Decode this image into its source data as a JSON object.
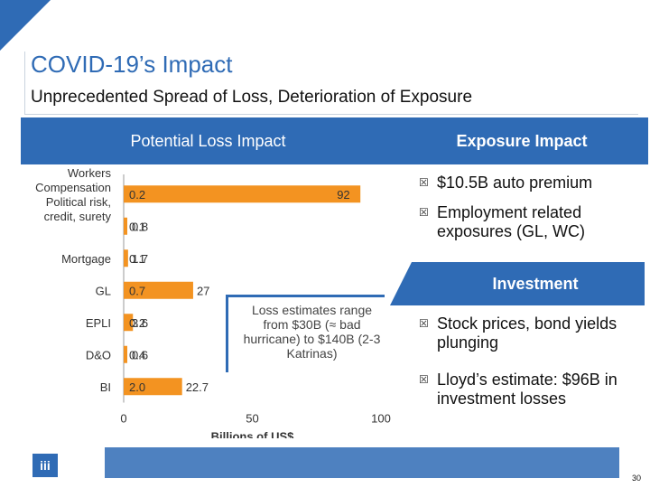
{
  "slide": {
    "title": "COVID-19’s Impact",
    "subtitle": "Unprecedented Spread of Loss, Deterioration of Exposure",
    "page_number": "30",
    "logo_text": "iii"
  },
  "panels": {
    "loss_header": "Potential Loss Impact",
    "exposure_header": "Exposure Impact",
    "investment_header": "Investment"
  },
  "callout": {
    "text": "Loss estimates range from $30B (≈ bad hurricane) to $140B (2-3 Katrinas)"
  },
  "exposure_bullets": [
    "$10.5B auto premium",
    "Employment related exposures (GL, WC)"
  ],
  "investment_bullets": [
    "Stock prices, bond yields plunging",
    "Lloyd’s estimate: $96B in investment losses"
  ],
  "colors": {
    "accent": "#2f6bb5",
    "bar": "#f39321"
  },
  "chart_data": {
    "type": "bar",
    "orientation": "horizontal",
    "xlabel": "Billions of US$",
    "xlim": [
      0,
      100
    ],
    "x_ticks": [
      "0",
      "50",
      "100"
    ],
    "categories": [
      "Workers Compensation Political risk, credit, surety",
      "",
      "Mortgage",
      "GL",
      "EPLI",
      "D&O",
      "BI"
    ],
    "category_lines": [
      [
        "Workers",
        "Compensation",
        "Political risk,",
        "credit, surety"
      ],
      [],
      [
        "Mortgage"
      ],
      [
        "GL"
      ],
      [
        "EPLI"
      ],
      [
        "D&O"
      ],
      [
        "BI"
      ]
    ],
    "series": [
      {
        "values": [
          0.2,
          0.1,
          0.1,
          0.7,
          0.2,
          0.4,
          2.0
        ]
      },
      {
        "values": [
          92,
          0.8,
          1.7,
          27,
          3.6,
          0.6,
          22.7
        ]
      }
    ],
    "low_labels": [
      "0.2",
      "0.1",
      "0.1",
      "0.7",
      "0.2",
      "0.4",
      "2.0"
    ],
    "high_labels": [
      "92",
      "0.8",
      "1.7",
      "27",
      "3.6",
      "0.6",
      "22.7"
    ]
  }
}
